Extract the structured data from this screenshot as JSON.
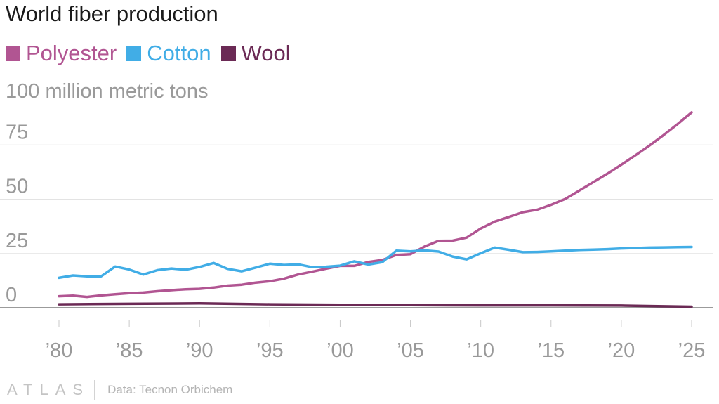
{
  "chart_data": {
    "type": "line",
    "title": "World fiber production",
    "ylabel": "100 million metric tons",
    "ylim": [
      0,
      100
    ],
    "xlim": [
      1980,
      2025
    ],
    "yticks": [
      0,
      25,
      50,
      75
    ],
    "ytick_labels": [
      "0",
      "25",
      "50",
      "75"
    ],
    "xticks": [
      1980,
      1985,
      1990,
      1995,
      2000,
      2005,
      2010,
      2015,
      2020,
      2025
    ],
    "xtick_labels": [
      "’80",
      "’85",
      "’90",
      "’95",
      "’00",
      "’05",
      "’10",
      "’15",
      "’20",
      "’25"
    ],
    "grid": "horizontal",
    "legend_position": "top-left",
    "series": [
      {
        "name": "Polyester",
        "color": "#b15592",
        "x": [
          1980,
          1981,
          1982,
          1983,
          1984,
          1985,
          1986,
          1987,
          1988,
          1989,
          1990,
          1991,
          1992,
          1993,
          1994,
          1995,
          1996,
          1997,
          1998,
          1999,
          2000,
          2001,
          2002,
          2003,
          2004,
          2005,
          2006,
          2007,
          2008,
          2009,
          2010,
          2011,
          2012,
          2013,
          2014,
          2015,
          2016,
          2017,
          2018,
          2019,
          2020,
          2021,
          2022,
          2023,
          2024,
          2025
        ],
        "values": [
          5.3,
          5.6,
          5.0,
          5.7,
          6.2,
          6.7,
          7.0,
          7.6,
          8.1,
          8.5,
          8.7,
          9.3,
          10.2,
          10.6,
          11.6,
          12.2,
          13.4,
          15.3,
          16.6,
          18.0,
          19.3,
          19.3,
          21.1,
          22.0,
          24.3,
          24.7,
          28.2,
          30.8,
          30.9,
          32.3,
          36.5,
          39.7,
          41.8,
          44.0,
          45.1,
          47.4,
          50.1,
          53.9,
          57.8,
          61.7,
          65.9,
          70.2,
          74.7,
          79.5,
          84.6,
          90.0
        ]
      },
      {
        "name": "Cotton",
        "color": "#41ade6",
        "x": [
          1980,
          1981,
          1982,
          1983,
          1984,
          1985,
          1986,
          1987,
          1988,
          1989,
          1990,
          1991,
          1992,
          1993,
          1994,
          1995,
          1996,
          1997,
          1998,
          1999,
          2000,
          2001,
          2002,
          2003,
          2004,
          2005,
          2006,
          2007,
          2008,
          2009,
          2010,
          2011,
          2012,
          2013,
          2014,
          2015,
          2016,
          2017,
          2018,
          2019,
          2020,
          2021,
          2022,
          2023,
          2024,
          2025
        ],
        "values": [
          13.8,
          14.9,
          14.5,
          14.5,
          19.0,
          17.6,
          15.3,
          17.3,
          18.1,
          17.5,
          18.8,
          20.6,
          17.9,
          16.8,
          18.5,
          20.3,
          19.7,
          20.0,
          18.7,
          18.9,
          19.4,
          21.4,
          19.9,
          21.0,
          26.3,
          26.0,
          26.4,
          25.9,
          23.6,
          22.3,
          25.1,
          27.7,
          26.7,
          25.6,
          25.7,
          26.0,
          26.3,
          26.6,
          26.8,
          27.0,
          27.3,
          27.5,
          27.7,
          27.8,
          27.9,
          28.0
        ]
      },
      {
        "name": "Wool",
        "color": "#6b2a55",
        "x": [
          1980,
          1985,
          1990,
          1995,
          2000,
          2005,
          2010,
          2015,
          2020,
          2025
        ],
        "values": [
          1.6,
          1.8,
          2.0,
          1.6,
          1.4,
          1.2,
          1.1,
          1.1,
          1.0,
          0.5
        ]
      }
    ]
  },
  "footer": {
    "logo": "ATLAS",
    "source": "Data: Tecnon Orbichem"
  },
  "colors": {
    "grid": "#e3e3e3",
    "baseline": "#7a7a7a",
    "tick_label": "#999999",
    "axis_title": "#9a9a9a"
  }
}
